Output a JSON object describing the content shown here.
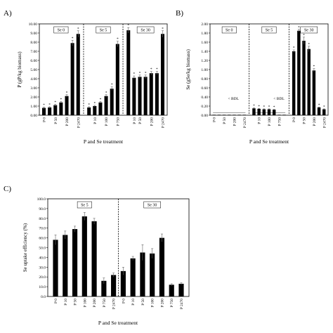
{
  "chart_data": [
    {
      "panel": "A)",
      "type": "bar",
      "ylabel": "P (gP/kg biomass)",
      "xlabel": "P and Se treatment",
      "ylim": [
        0,
        10
      ],
      "yticks": [
        "0.00",
        "1.00",
        "2.00",
        "3.00",
        "4.00",
        "5.00",
        "6.00",
        "7.00",
        "8.00",
        "9.00",
        "10.00"
      ],
      "groups": [
        {
          "label": "Se 0",
          "categories": [
            "P 0",
            "P 10",
            "P 50",
            "P 100",
            "P 200",
            "P 750",
            "P 2470"
          ],
          "visible_tick_labels": [
            "P 0",
            "P 50",
            "P 200",
            "P 2470"
          ],
          "values": [
            0.8,
            0.85,
            1.1,
            1.4,
            2.1,
            7.9,
            8.9
          ],
          "errors": [
            0.08,
            0.08,
            0.1,
            0.1,
            0.15,
            0.3,
            0.35
          ]
        },
        {
          "label": "Se 5",
          "categories": [
            "P 0",
            "P 10",
            "P 50",
            "P 100",
            "P 200",
            "P 750"
          ],
          "visible_tick_labels": [
            "P 10",
            "P 100",
            "P 750"
          ],
          "values": [
            0.85,
            1.0,
            1.4,
            2.1,
            2.9,
            7.8
          ],
          "errors": [
            0.08,
            0.08,
            0.1,
            0.15,
            0.2,
            0.3
          ]
        },
        {
          "label": "Se 30",
          "categories": [
            "P 0",
            "P 10",
            "P 50",
            "P 100",
            "P 200",
            "P 750",
            "P 2470"
          ],
          "visible_tick_labels": [
            "P 10",
            "P 50",
            "P 200",
            "P 2470"
          ],
          "values": [
            9.3,
            4.1,
            4.2,
            4.2,
            4.6,
            4.6,
            8.9
          ],
          "errors": [
            0.3,
            0.2,
            0.2,
            0.2,
            0.2,
            0.2,
            0.35
          ]
        }
      ],
      "annotations": "*"
    },
    {
      "panel": "B)",
      "type": "bar",
      "ylabel": "Se (gSe/kg biomass)",
      "xlabel": "P and Se treatment",
      "ylim": [
        0,
        2
      ],
      "yticks": [
        "0.00",
        "0.20",
        "0.40",
        "0.60",
        "0.80",
        "1.00",
        "1.20",
        "1.40",
        "1.60",
        "1.80",
        "2.00"
      ],
      "groups": [
        {
          "label": "Se 0",
          "categories": [
            "P 0",
            "P 10",
            "P 50",
            "P 100",
            "P 200",
            "P 750",
            "P 2470"
          ],
          "visible_tick_labels": [
            "P 0",
            "P 50",
            "P 200",
            "P 2470"
          ],
          "values": [
            0.01,
            0.01,
            0.01,
            0.01,
            0.01,
            0.01,
            0.01
          ],
          "errors": [
            0,
            0,
            0,
            0,
            0,
            0,
            0
          ],
          "note": "< BDL"
        },
        {
          "label": "Se 5",
          "categories": [
            "P 0",
            "P 10",
            "P 50",
            "P 100",
            "P 200",
            "P 750",
            "P 2470"
          ],
          "visible_tick_labels": [
            "P 10",
            "P 100",
            "P 750"
          ],
          "values": [
            0.15,
            0.14,
            0.13,
            0.13,
            0.12,
            0.01,
            0.01
          ],
          "errors": [
            0.01,
            0.01,
            0.01,
            0.01,
            0.01,
            0,
            0
          ],
          "note": "< BDL"
        },
        {
          "label": "Se 30",
          "categories": [
            "P 0",
            "P 10",
            "P 50",
            "P 100",
            "P 200",
            "P 750",
            "P 2470"
          ],
          "visible_tick_labels": [
            "P 0",
            "P 50",
            "P 200",
            "P 2470"
          ],
          "values": [
            1.4,
            1.85,
            1.63,
            1.45,
            0.98,
            0.17,
            0.13
          ],
          "errors": [
            0.03,
            0.03,
            0.08,
            0.06,
            0.04,
            0.01,
            0.01
          ]
        }
      ],
      "annotations": "*"
    },
    {
      "panel": "C)",
      "type": "bar",
      "ylabel": "Se uptake efficiency (%)",
      "xlabel": "P and Se treatment",
      "ylim": [
        0,
        100
      ],
      "yticks": [
        "0.0",
        "10.0",
        "20.0",
        "30.0",
        "40.0",
        "50.0",
        "60.0",
        "70.0",
        "80.0",
        "90.0",
        "100.0"
      ],
      "groups": [
        {
          "label": "Se 5",
          "categories": [
            "P 0",
            "P 10",
            "P 50",
            "P 100",
            "P 200",
            "P 750",
            "P 2470"
          ],
          "visible_tick_labels": [
            "P 0",
            "P 10",
            "P 50",
            "P 100",
            "P 200",
            "P 750",
            "P 2470"
          ],
          "values": [
            58,
            63,
            69,
            82,
            77,
            16,
            22
          ],
          "errors": [
            5,
            4,
            3,
            4,
            3,
            3,
            2
          ]
        },
        {
          "label": "Se 30",
          "categories": [
            "P 0",
            "P 10",
            "P 50",
            "P 100",
            "P 200",
            "P 750",
            "P 2470"
          ],
          "visible_tick_labels": [
            "P 0",
            "P 10",
            "P 50",
            "P 100",
            "P 200",
            "P 750",
            "P 2470"
          ],
          "values": [
            26,
            39,
            45,
            44,
            60,
            12,
            13
          ],
          "errors": [
            4,
            2,
            8,
            5,
            4,
            1,
            1
          ]
        }
      ]
    }
  ]
}
